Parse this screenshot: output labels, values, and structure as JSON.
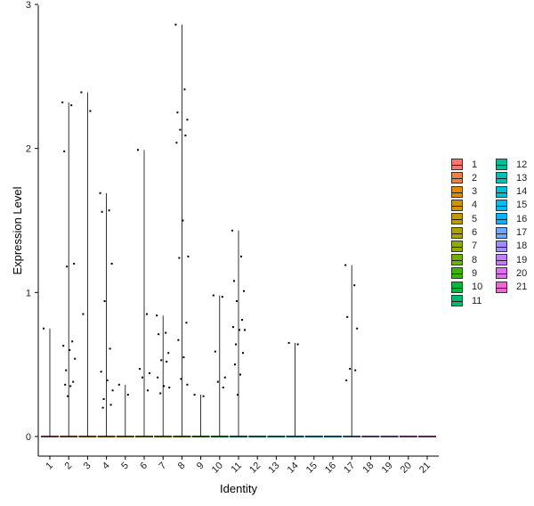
{
  "chart_data": {
    "type": "violin",
    "xlabel": "Identity",
    "ylabel": "Expression Level",
    "categories": [
      "1",
      "2",
      "3",
      "4",
      "5",
      "6",
      "7",
      "8",
      "9",
      "10",
      "11",
      "12",
      "13",
      "14",
      "15",
      "16",
      "17",
      "18",
      "19",
      "20",
      "21"
    ],
    "ylim": [
      -0.15,
      3
    ],
    "yticks": [
      0,
      1,
      2,
      3
    ],
    "grid": false,
    "legend_placement": "right",
    "series": [
      {
        "name": "1",
        "color": "#F8766D",
        "max": 0.75,
        "points": [
          0.75
        ]
      },
      {
        "name": "2",
        "color": "#ED8141",
        "max": 2.32,
        "points": [
          2.32,
          2.3,
          1.98,
          1.2,
          1.18,
          0.66,
          0.63,
          0.6,
          0.54,
          0.46,
          0.38,
          0.36,
          0.35,
          0.28
        ]
      },
      {
        "name": "3",
        "color": "#E18A00",
        "max": 2.39,
        "points": [
          2.39,
          2.26,
          0.85
        ]
      },
      {
        "name": "4",
        "color": "#D09400",
        "max": 1.69,
        "points": [
          1.69,
          1.57,
          1.56,
          1.2,
          0.94,
          0.61,
          0.45,
          0.39,
          0.32,
          0.26,
          0.22,
          0.2
        ]
      },
      {
        "name": "5",
        "color": "#BE9C00",
        "max": 0.36,
        "points": [
          0.36,
          0.29
        ]
      },
      {
        "name": "6",
        "color": "#A8A400",
        "max": 1.99,
        "points": [
          1.99,
          0.85,
          0.47,
          0.44,
          0.41,
          0.32
        ]
      },
      {
        "name": "7",
        "color": "#8FAA00",
        "max": 0.84,
        "points": [
          0.84,
          0.72,
          0.71,
          0.58,
          0.53,
          0.52,
          0.41,
          0.35,
          0.34,
          0.3
        ]
      },
      {
        "name": "8",
        "color": "#6FB000",
        "max": 2.86,
        "points": [
          2.86,
          2.41,
          2.25,
          2.2,
          2.13,
          2.09,
          2.04,
          1.5,
          1.25,
          1.24,
          0.79,
          0.67,
          0.55,
          0.4,
          0.36
        ]
      },
      {
        "name": "9",
        "color": "#3CB400",
        "max": 0.29,
        "points": [
          0.29,
          0.28
        ]
      },
      {
        "name": "10",
        "color": "#00B83A",
        "max": 0.98,
        "points": [
          0.98,
          0.97,
          0.59,
          0.41,
          0.38,
          0.34
        ]
      },
      {
        "name": "11",
        "color": "#00BB6D",
        "max": 1.43,
        "points": [
          1.43,
          1.25,
          1.08,
          1.01,
          0.94,
          0.81,
          0.76,
          0.74,
          0.74,
          0.64,
          0.58,
          0.5,
          0.43,
          0.29
        ]
      },
      {
        "name": "12",
        "color": "#00BF96",
        "max": 0.0,
        "points": []
      },
      {
        "name": "13",
        "color": "#00C0B8",
        "max": 0.0,
        "points": []
      },
      {
        "name": "14",
        "color": "#00C0D8",
        "max": 0.65,
        "points": [
          0.65,
          0.64
        ]
      },
      {
        "name": "15",
        "color": "#00BDF4",
        "max": 0.0,
        "points": []
      },
      {
        "name": "16",
        "color": "#00B5FF",
        "max": 0.0,
        "points": []
      },
      {
        "name": "17",
        "color": "#6EA9FF",
        "max": 1.19,
        "points": [
          1.19,
          1.05,
          0.83,
          0.75,
          0.47,
          0.46,
          0.39
        ]
      },
      {
        "name": "18",
        "color": "#A28BFF",
        "max": 0.0,
        "points": []
      },
      {
        "name": "19",
        "color": "#C77CFF",
        "max": 0.0,
        "points": []
      },
      {
        "name": "20",
        "color": "#E36EF6",
        "max": 0.0,
        "points": []
      },
      {
        "name": "21",
        "color": "#F364D6",
        "max": 0.0,
        "points": []
      }
    ]
  }
}
